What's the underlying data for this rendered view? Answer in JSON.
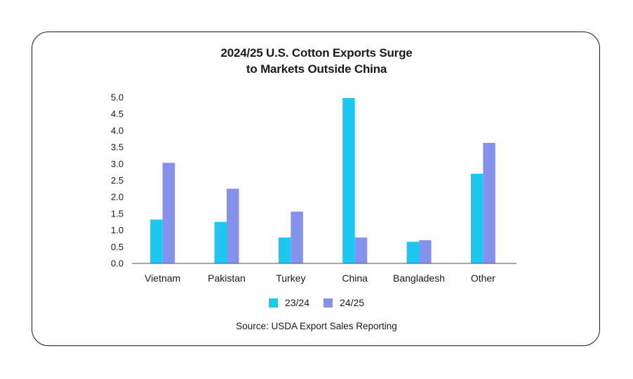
{
  "chart_data": {
    "type": "bar",
    "title": "2024/25 U.S. Cotton Exports Surge",
    "subtitle": "to Markets Outside China",
    "categories": [
      "Vietnam",
      "Pakistan",
      "Turkey",
      "China",
      "Bangladesh",
      "Other"
    ],
    "series": [
      {
        "name": "23/24",
        "color": "#1cc8f2",
        "values": [
          1.32,
          1.25,
          0.78,
          4.98,
          0.65,
          2.7
        ]
      },
      {
        "name": "24/25",
        "color": "#8591ec",
        "values": [
          3.03,
          2.25,
          1.56,
          0.78,
          0.7,
          3.63
        ]
      }
    ],
    "ylim": [
      0,
      5.0
    ],
    "yticks": [
      "0.0",
      "0.5",
      "1.0",
      "1.5",
      "2.0",
      "2.5",
      "3.0",
      "3.5",
      "4.0",
      "4.5",
      "5.0"
    ],
    "xlabel": "",
    "ylabel": "",
    "legend_position": "bottom-center",
    "source": "Source: USDA Export Sales Reporting"
  }
}
